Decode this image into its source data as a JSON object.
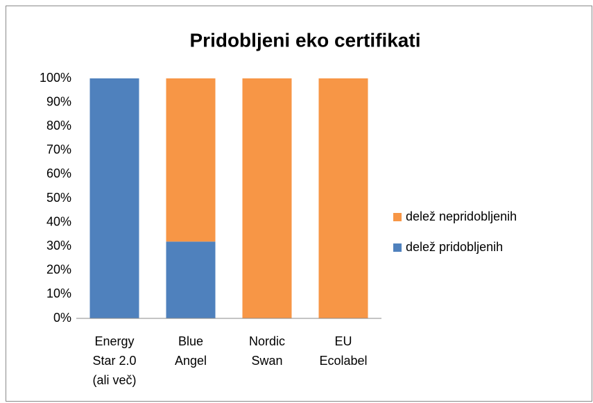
{
  "chart_data": {
    "type": "stacked-bar",
    "title": "Pridobljeni eko certifikati",
    "categories": [
      [
        "Energy",
        "Star 2.0",
        "(ali več)"
      ],
      [
        "Blue",
        "Angel"
      ],
      [
        "Nordic",
        "Swan"
      ],
      [
        "EU",
        "Ecolabel"
      ]
    ],
    "series": [
      {
        "name": "delež pridobljenih",
        "color": "#4f81bd",
        "values": [
          100,
          32,
          0,
          0
        ]
      },
      {
        "name": "delež nepridobljenih",
        "color": "#f79646",
        "values": [
          0,
          68,
          100,
          100
        ]
      }
    ],
    "ylim": [
      0,
      100
    ],
    "yticks": [
      {
        "value": 0,
        "label": "0%"
      },
      {
        "value": 10,
        "label": "10%"
      },
      {
        "value": 20,
        "label": "20%"
      },
      {
        "value": 30,
        "label": "30%"
      },
      {
        "value": 40,
        "label": "40%"
      },
      {
        "value": 50,
        "label": "50%"
      },
      {
        "value": 60,
        "label": "60%"
      },
      {
        "value": 70,
        "label": "70%"
      },
      {
        "value": 80,
        "label": "80%"
      },
      {
        "value": 90,
        "label": "90%"
      },
      {
        "value": 100,
        "label": "100%"
      }
    ],
    "grid": false,
    "legend": "right"
  }
}
